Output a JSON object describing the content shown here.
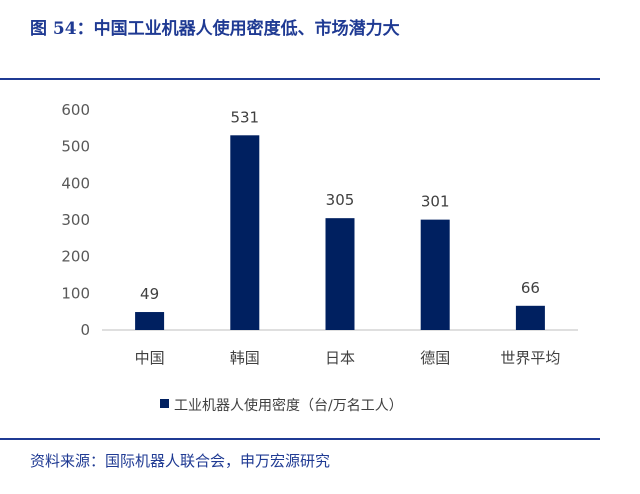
{
  "figure": {
    "title": "图 54：中国工业机器人使用密度低、市场潜力大",
    "source": "资料来源：国际机器人联合会，申万宏源研究"
  },
  "colors": {
    "accent": "#1f3a93",
    "bar": "#002060"
  },
  "chart_data": {
    "type": "bar",
    "categories": [
      "中国",
      "韩国",
      "日本",
      "德国",
      "世界平均"
    ],
    "series": [
      {
        "name": "工业机器人使用密度（台/万名工人）",
        "values": [
          49,
          531,
          305,
          301,
          66
        ]
      }
    ],
    "ylim": [
      0,
      600
    ],
    "yticks": [
      0,
      100,
      200,
      300,
      400,
      500,
      600
    ],
    "grid": false,
    "legend_position": "bottom-center",
    "data_labels": true
  }
}
